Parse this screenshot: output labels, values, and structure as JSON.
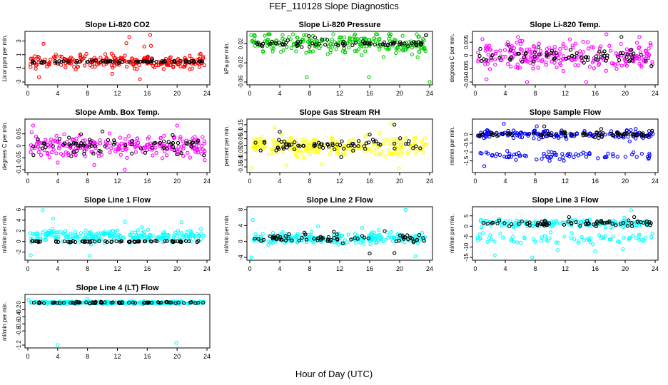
{
  "figure": {
    "title": "FEF_110128  Slope Diagnostics",
    "xlabel": "Hour of Day (UTC)"
  },
  "chart_data": [
    {
      "type": "scatter",
      "title": "Slope Li-820 CO2",
      "ylabel": "Licor ppm per min.",
      "color": "#ff0000",
      "xlim": [
        0,
        24
      ],
      "ylim": [
        -3,
        4
      ],
      "xticks": [
        0,
        4,
        8,
        12,
        16,
        20,
        24
      ],
      "yticks": [
        -3,
        -1,
        1,
        3
      ],
      "center": 0,
      "spread": 0.9,
      "black_spread": 0.15,
      "outliers": [
        [
          1.5,
          -2.3
        ],
        [
          2.1,
          2.6
        ],
        [
          13.6,
          3.6
        ],
        [
          15.0,
          -2.6
        ],
        [
          16.4,
          3.9
        ],
        [
          23.0,
          -0.8
        ],
        [
          11.3,
          -1.8
        ],
        [
          13.2,
          2.7
        ],
        [
          15.6,
          2.2
        ],
        [
          16.5,
          2.3
        ]
      ],
      "black_outliers": [
        [
          4.0,
          -0.3
        ],
        [
          12.2,
          -0.2
        ],
        [
          16.6,
          0.3
        ]
      ]
    },
    {
      "type": "scatter",
      "title": "Slope Li-820 Pressure",
      "ylabel": "kPa per min.",
      "color": "#00cc00",
      "xlim": [
        0,
        24
      ],
      "ylim": [
        -0.06,
        0.04
      ],
      "xticks": [
        0,
        4,
        8,
        12,
        16,
        20,
        24
      ],
      "yticks": [
        -0.06,
        -0.02,
        0.02
      ],
      "center": 0.02,
      "spread": 0.02,
      "black_spread": 0.006,
      "outliers": [
        [
          7.6,
          -0.05
        ],
        [
          15.9,
          -0.05
        ],
        [
          24.0,
          -0.06
        ],
        [
          0.2,
          0.038
        ],
        [
          2.0,
          0.037
        ],
        [
          18.7,
          0.036
        ]
      ],
      "black_outliers": [
        [
          7.9,
          0.036
        ],
        [
          8.7,
          0.033
        ],
        [
          23.5,
          0.038
        ]
      ]
    },
    {
      "type": "scatter",
      "title": "Slope Li-820 Temp.",
      "ylabel": "degrees C per min.",
      "color": "#ff00ff",
      "xlim": [
        0,
        24
      ],
      "ylim": [
        -0.01,
        0.008
      ],
      "xticks": [
        0,
        4,
        8,
        12,
        16,
        20,
        24
      ],
      "yticks": [
        -0.01,
        -0.005,
        0.0,
        0.005
      ],
      "center": 0.0,
      "spread": 0.0045,
      "black_spread": 0.0025,
      "outliers": [
        [
          1.5,
          -0.009
        ],
        [
          6.9,
          -0.011
        ],
        [
          14.8,
          -0.01
        ],
        [
          17.5,
          0.008
        ],
        [
          21.9,
          0.007
        ],
        [
          5.7,
          0.007
        ]
      ],
      "black_outliers": [
        [
          4.4,
          0.004
        ],
        [
          19.5,
          0.007
        ],
        [
          23.5,
          -0.004
        ]
      ]
    },
    {
      "type": "scatter",
      "title": "Slope Amb. Box Temp.",
      "ylabel": "degrees C per min.",
      "color": "#ff00ff",
      "xlim": [
        0,
        24
      ],
      "ylim": [
        -0.1,
        0.1
      ],
      "xticks": [
        0,
        4,
        8,
        12,
        16,
        20,
        24
      ],
      "yticks": [
        -0.1,
        -0.05,
        0.0,
        0.05
      ],
      "center": 0.0,
      "spread": 0.045,
      "black_spread": 0.03,
      "outliers": [
        [
          0.7,
          0.085
        ],
        [
          4.0,
          -0.07
        ],
        [
          8.9,
          -0.08
        ],
        [
          13.0,
          -0.1
        ],
        [
          20.0,
          0.085
        ],
        [
          23.7,
          -0.06
        ]
      ],
      "black_outliers": [
        [
          10.0,
          0.06
        ],
        [
          23.6,
          -0.04
        ],
        [
          19.4,
          0.045
        ]
      ]
    },
    {
      "type": "scatter",
      "title": "Slope Gas Stream RH",
      "ylabel": "percent per min.",
      "color": "#ffff00",
      "xlim": [
        0,
        24
      ],
      "ylim": [
        -0.17,
        0.17
      ],
      "xticks": [
        0,
        4,
        8,
        12,
        16,
        20,
        24
      ],
      "yticks": [
        -0.15,
        -0.1,
        -0.05,
        0.0,
        0.05,
        0.1,
        0.15
      ],
      "center": 0.0,
      "spread": 0.06,
      "black_spread": 0.04,
      "outliers": [
        [
          4.9,
          -0.14
        ],
        [
          9.6,
          -0.13
        ],
        [
          19.9,
          -0.16
        ],
        [
          3.3,
          0.13
        ],
        [
          18.8,
          0.16
        ],
        [
          0.2,
          -0.16
        ]
      ],
      "black_outliers": [
        [
          4.0,
          0.1
        ],
        [
          12.2,
          -0.08
        ],
        [
          16.0,
          0.08
        ],
        [
          19.3,
          0.15
        ]
      ]
    },
    {
      "type": "scatter",
      "title": "Slope Sample Flow",
      "ylabel": "ml/min per min.",
      "color": "#0000ff",
      "xlim": [
        0,
        24
      ],
      "ylim": [
        -2,
        0.7
      ],
      "xticks": [
        0,
        4,
        8,
        12,
        16,
        20,
        24
      ],
      "yticks": [
        -1.5,
        -1.0,
        -0.5,
        0.0
      ],
      "center": 0.0,
      "spread": 0.22,
      "black_spread": 0.12,
      "band2_center": -1.2,
      "band2_spread": 0.2,
      "outliers": [
        [
          1.2,
          -1.8
        ],
        [
          3.8,
          0.6
        ],
        [
          8.2,
          0.45
        ],
        [
          20.6,
          -0.4
        ]
      ],
      "black_outliers": [
        [
          9.2,
          0.45
        ],
        [
          16.8,
          0.3
        ],
        [
          23.6,
          0.2
        ]
      ]
    },
    {
      "type": "scatter",
      "title": "Slope Line 1 Flow",
      "ylabel": "ml/min per min.",
      "color": "#00ffff",
      "xlim": [
        0,
        24
      ],
      "ylim": [
        -3,
        6
      ],
      "xticks": [
        0,
        4,
        8,
        12,
        16,
        20,
        24
      ],
      "yticks": [
        -2,
        0,
        2,
        4,
        6
      ],
      "center": 1.0,
      "spread": 1.1,
      "black_spread": 0.12,
      "black_center": 0.0,
      "outliers": [
        [
          2.0,
          5.9
        ],
        [
          0.4,
          -2.6
        ],
        [
          8.3,
          -2.7
        ],
        [
          13.0,
          3.7
        ],
        [
          20.6,
          3.6
        ],
        [
          3.4,
          4.3
        ]
      ],
      "black_outliers": []
    },
    {
      "type": "scatter",
      "title": "Slope Line 2 Flow",
      "ylabel": "ml/min per min.",
      "color": "#00ffff",
      "xlim": [
        0,
        24
      ],
      "ylim": [
        -4,
        8
      ],
      "xticks": [
        0,
        4,
        8,
        12,
        16,
        20,
        24
      ],
      "yticks": [
        -4,
        0,
        4,
        8
      ],
      "center": 0.8,
      "spread": 1.3,
      "black_spread": 1.2,
      "outliers": [
        [
          0.4,
          5.4
        ],
        [
          0.2,
          -4.0
        ],
        [
          20.8,
          7.9
        ],
        [
          22.1,
          -3.7
        ],
        [
          9.1,
          3.8
        ],
        [
          15.0,
          3.4
        ]
      ],
      "black_outliers": [
        [
          16.0,
          -3.0
        ],
        [
          19.3,
          -2.9
        ],
        [
          18.0,
          2.6
        ]
      ]
    },
    {
      "type": "scatter",
      "title": "Slope Line 3 Flow",
      "ylabel": "ml/min per min.",
      "color": "#00ffff",
      "xlim": [
        0,
        24
      ],
      "ylim": [
        -15,
        8
      ],
      "xticks": [
        0,
        4,
        8,
        12,
        16,
        20,
        24
      ],
      "yticks": [
        -15,
        -10,
        -5,
        0,
        5
      ],
      "center": 1.5,
      "spread": 1.6,
      "black_spread": 1.2,
      "band2_center": -6.0,
      "band2_spread": 2.2,
      "outliers": [
        [
          20.8,
          7.7
        ],
        [
          2.6,
          -14.0
        ],
        [
          7.6,
          -15.0
        ],
        [
          11.0,
          -11.5
        ],
        [
          16.0,
          -12.0
        ],
        [
          19.7,
          -11.0
        ]
      ],
      "black_outliers": [
        [
          12.5,
          4.4
        ],
        [
          21.2,
          4.4
        ]
      ]
    },
    {
      "type": "scatter",
      "title": "Slope Line 4 (LT) Flow",
      "ylabel": "ml/min per min.",
      "color": "#00ffff",
      "xlim": [
        0,
        24
      ],
      "ylim": [
        -1.2,
        0.15
      ],
      "xticks": [
        0,
        4,
        8,
        12,
        16,
        20,
        24
      ],
      "yticks": [
        -1.2,
        -0.8,
        -0.6,
        -0.4,
        -0.2,
        0.0
      ],
      "center": 0.0,
      "spread": 0.035,
      "black_spread": 0.02,
      "outliers": [
        [
          4.0,
          -1.2
        ],
        [
          19.9,
          -1.14
        ],
        [
          8.0,
          0.1
        ],
        [
          0.1,
          0.08
        ]
      ],
      "black_outliers": []
    }
  ]
}
